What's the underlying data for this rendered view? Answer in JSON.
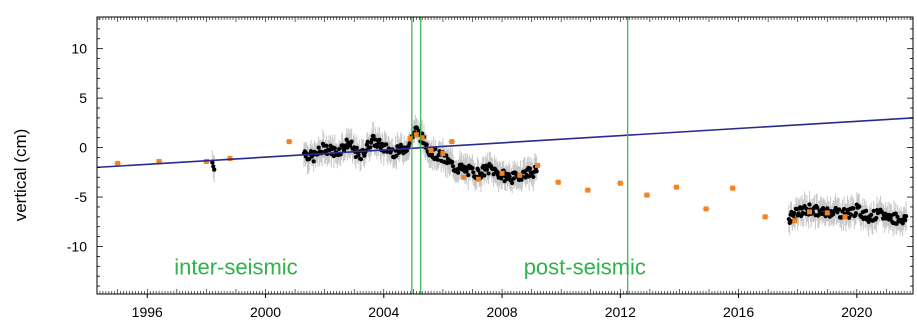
{
  "chart_data": {
    "type": "scatter",
    "title": "",
    "xlabel": "",
    "ylabel": "vertical (cm)",
    "xlim": [
      1994.3,
      2021.9
    ],
    "ylim": [
      -14.8,
      13.2
    ],
    "xticks": [
      1996,
      2000,
      2004,
      2008,
      2012,
      2016,
      2020
    ],
    "yticks": [
      10,
      5,
      0,
      -5,
      -10
    ],
    "grid": false,
    "legend": "none",
    "colors": {
      "continuous": "#000000",
      "campaign": "#f58220",
      "trend": "#2b2b8f",
      "events": "#2db34a",
      "annotation": "#2db34a",
      "errorbar": "#c8c8c8"
    },
    "event_lines_x": [
      2004.95,
      2005.25,
      2012.25
    ],
    "annotations": [
      {
        "text": "inter-seismic",
        "x": 1999.0,
        "y": -12.0
      },
      {
        "text": "post-seismic",
        "x": 2010.8,
        "y": -12.0
      }
    ],
    "trend_line": {
      "x": [
        1994.3,
        2021.9
      ],
      "y": [
        -2.0,
        3.0
      ]
    },
    "campaign_points": {
      "x": [
        1995.0,
        1996.4,
        1998.0,
        1998.8,
        2000.8,
        2004.9,
        2005.1,
        2005.3,
        2005.6,
        2006.0,
        2006.3,
        2006.7,
        2007.2,
        2008.0,
        2008.6,
        2009.2,
        2009.9,
        2010.9,
        2012.0,
        2012.9,
        2013.9,
        2014.9,
        2015.8,
        2016.9,
        2017.9,
        2018.4,
        2019.0,
        2019.6
      ],
      "y": [
        -1.6,
        -1.4,
        -1.4,
        -1.1,
        0.6,
        0.9,
        1.3,
        1.0,
        -0.3,
        -0.6,
        0.6,
        -3.0,
        -3.2,
        -2.6,
        -2.8,
        -1.8,
        -3.5,
        -4.3,
        -3.6,
        -4.8,
        -4.0,
        -6.2,
        -4.1,
        -7.0,
        -7.4,
        -6.5,
        -6.6,
        -7.0
      ]
    },
    "continuous_segments": [
      {
        "x": [
          1998.2,
          1998.3
        ],
        "y": [
          -1.5,
          -1.9
        ]
      },
      {
        "x": [
          2001.3,
          2001.6,
          2002.0,
          2002.4,
          2002.8,
          2003.2,
          2003.6,
          2004.0,
          2004.4,
          2004.9
        ],
        "y": [
          -0.5,
          -1.0,
          0.0,
          -0.5,
          0.5,
          -1.0,
          0.8,
          0.0,
          -0.5,
          0.3
        ]
      },
      {
        "x": [
          2004.95,
          2005.1,
          2005.3,
          2005.6,
          2006.0,
          2006.4,
          2006.8,
          2007.2,
          2007.6,
          2008.0,
          2008.4,
          2008.8,
          2009.2
        ],
        "y": [
          1.2,
          1.8,
          0.9,
          -0.5,
          -1.0,
          -2.0,
          -2.3,
          -2.6,
          -2.1,
          -2.8,
          -3.1,
          -2.5,
          -2.4
        ]
      },
      {
        "x": [
          2017.7,
          2018.0,
          2018.4,
          2018.8,
          2019.2,
          2019.6,
          2020.0,
          2020.4,
          2020.8,
          2021.2,
          2021.7
        ],
        "y": [
          -7.2,
          -6.6,
          -6.2,
          -6.6,
          -6.4,
          -6.7,
          -6.3,
          -7.0,
          -6.8,
          -7.1,
          -7.3
        ]
      }
    ]
  }
}
